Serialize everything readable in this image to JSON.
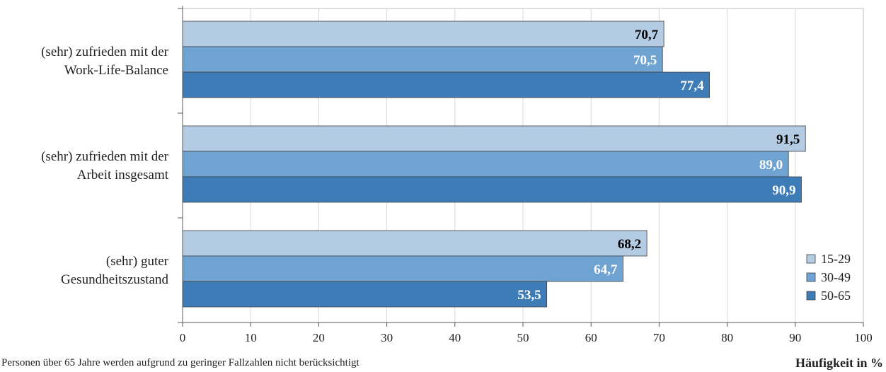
{
  "chart_data": {
    "type": "bar",
    "orientation": "horizontal",
    "categories": [
      [
        "(sehr) zufrieden mit der",
        "Work-Life-Balance"
      ],
      [
        "(sehr) zufrieden mit der",
        "Arbeit insgesamt"
      ],
      [
        "(sehr) guter",
        "Gesundheitszustand"
      ]
    ],
    "series": [
      {
        "name": "15-29",
        "values": [
          70.7,
          91.5,
          68.2
        ],
        "labels": [
          "70,7",
          "91,5",
          "68,2"
        ],
        "color": "#b4cbe4",
        "label_color": "#000000"
      },
      {
        "name": "30-49",
        "values": [
          70.5,
          89.0,
          64.7
        ],
        "labels": [
          "70,5",
          "89,0",
          "64,7"
        ],
        "color": "#6fa3d2",
        "label_color": "#ffffff"
      },
      {
        "name": "50-65",
        "values": [
          77.4,
          90.9,
          53.5
        ],
        "labels": [
          "77,4",
          "90,9",
          "53,5"
        ],
        "color": "#3d7cb6",
        "label_color": "#ffffff"
      }
    ],
    "xlim": [
      0,
      100
    ],
    "xticks": [
      0,
      10,
      20,
      30,
      40,
      50,
      60,
      70,
      80,
      90,
      100
    ],
    "xlabel": "Häufigkeit in %",
    "grid": "vertical",
    "legend_position": "bottom-right"
  },
  "footnote": "Personen über 65 Jahre werden aufgrund zu geringer Fallzahlen nicht berücksichtigt"
}
